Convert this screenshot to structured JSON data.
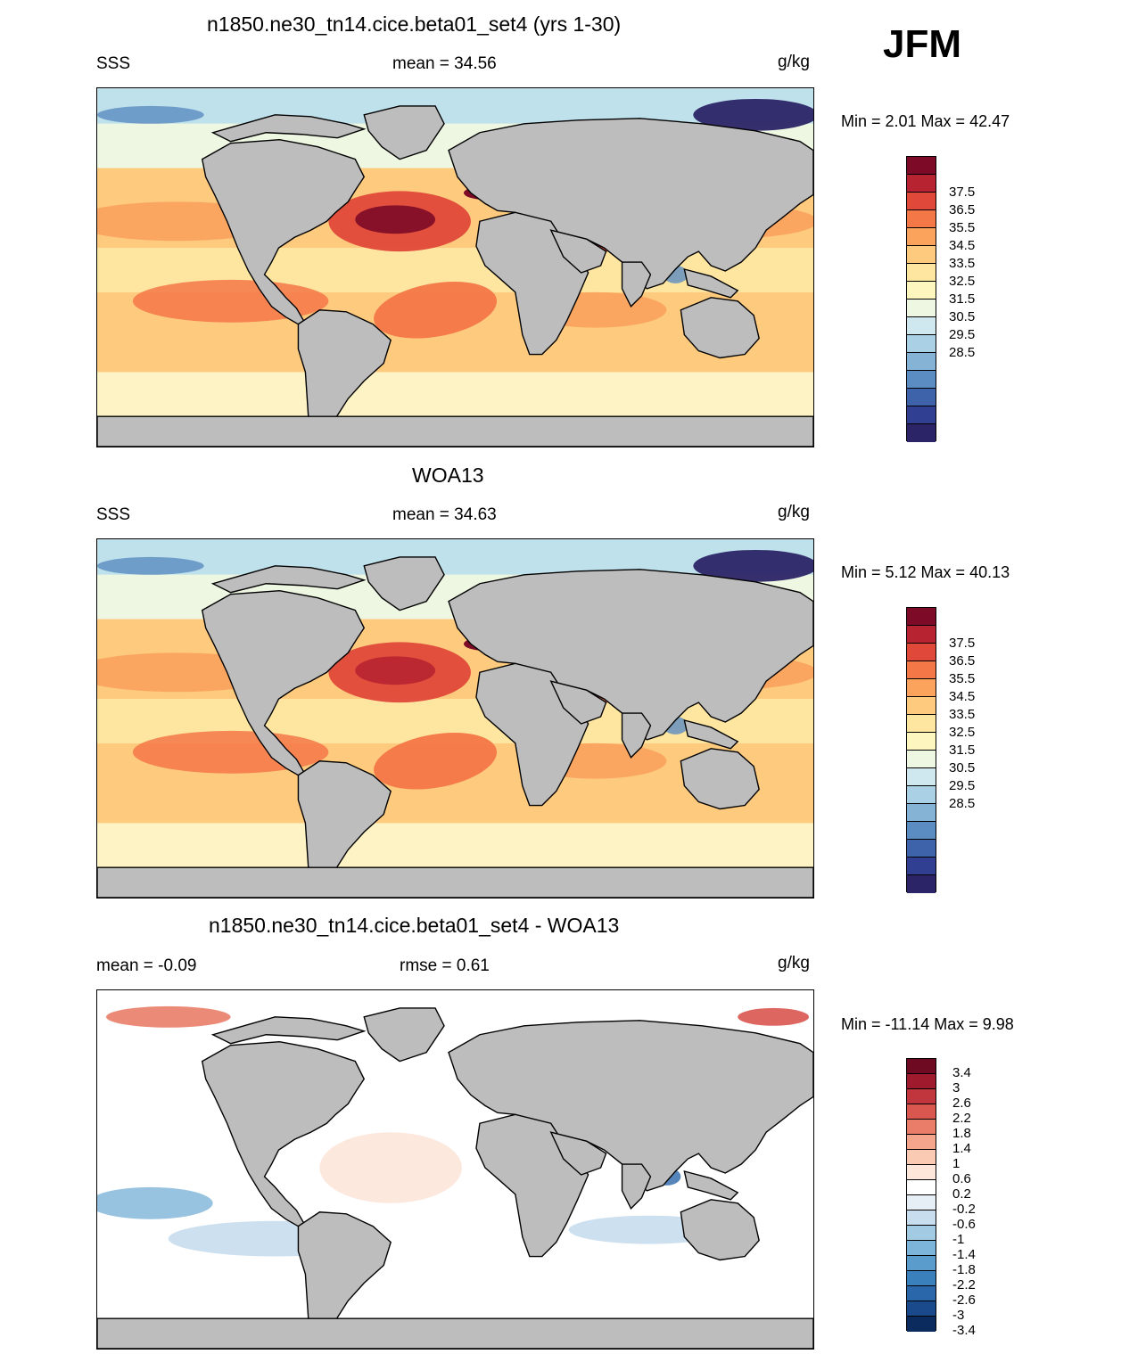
{
  "season": "JFM",
  "units": "g/kg",
  "panels": [
    {
      "title": "n1850.ne30_tn14.cice.beta01_set4 (yrs 1-30)",
      "variable": "SSS",
      "stat_text": "mean =  34.56",
      "units": "g/kg",
      "minmax": "Min =   2.01 Max =  42.47",
      "style": "abs_model"
    },
    {
      "title": "WOA13",
      "variable": "SSS",
      "stat_text": "mean =  34.63",
      "units": "g/kg",
      "minmax": "Min =   5.12 Max =  40.13",
      "style": "abs_obs"
    },
    {
      "title": "n1850.ne30_tn14.cice.beta01_set4 - WOA13",
      "variable": "mean =  -0.09",
      "stat_text": "rmse =   0.61",
      "units": "g/kg",
      "minmax": "Min = -11.14 Max =   9.98",
      "style": "diff"
    }
  ],
  "colorbars": {
    "abs": {
      "colors": [
        "#2b2466",
        "#303f91",
        "#3f63aa",
        "#5b8cc2",
        "#85b3d6",
        "#a9d0e4",
        "#cfe8ef",
        "#eef7e2",
        "#fdf7bf",
        "#fee6a0",
        "#fdca7e",
        "#fba25d",
        "#f47748",
        "#e0483a",
        "#b72331",
        "#7d0a26"
      ],
      "labels": [
        "28.5",
        "29.5",
        "30.5",
        "31.5",
        "32.5",
        "33.5",
        "34.5",
        "35.5",
        "36.5",
        "37.5"
      ]
    },
    "diff": {
      "colors": [
        "#0b2a5e",
        "#1a4a8c",
        "#2a67aa",
        "#3a80bd",
        "#5a9ccc",
        "#7db4d9",
        "#a3cae3",
        "#c8ddee",
        "#e6eff6",
        "#ffffff",
        "#fde6da",
        "#fbcab3",
        "#f5a58b",
        "#ea7d69",
        "#d9574f",
        "#c0363c",
        "#9e1a2c",
        "#6e0a22"
      ],
      "labels": [
        "-3.4",
        "-3",
        "-2.6",
        "-2.2",
        "-1.8",
        "-1.4",
        "-1",
        "-0.6",
        "-0.2",
        "0.2",
        "0.6",
        "1",
        "1.4",
        "1.8",
        "2.2",
        "2.6",
        "3",
        "3.4"
      ]
    }
  }
}
